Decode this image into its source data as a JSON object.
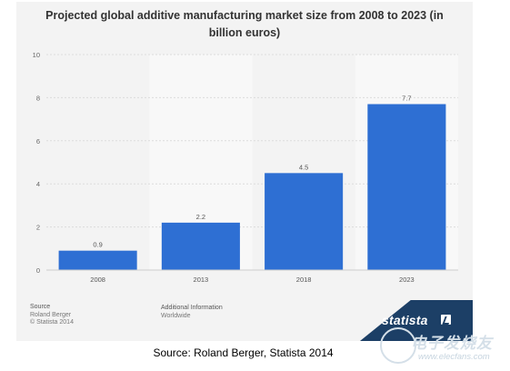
{
  "chart_data": {
    "type": "bar",
    "title": "Projected global additive manufacturing market size from 2008 to 2023 (in billion euros)",
    "categories": [
      "2008",
      "2013",
      "2018",
      "2023"
    ],
    "values": [
      0.9,
      2.2,
      4.5,
      7.7
    ],
    "value_labels": [
      "0.9",
      "2.2",
      "4.5",
      "7.7"
    ],
    "y_ticks": [
      "0",
      "2",
      "4",
      "6",
      "8",
      "10"
    ],
    "ylim": [
      0,
      10
    ],
    "xlabel": "",
    "ylabel": "",
    "grid": true,
    "bar_color": "#2e6fd3",
    "background_color": "#f3f3f3"
  },
  "notes": {
    "source_heading": "Source",
    "source_lines": [
      "Roland Berger",
      "© Statista 2014"
    ],
    "info_heading": "Additional Information",
    "info_lines": [
      "Worldwide"
    ]
  },
  "branding": {
    "statista_logo": "statista",
    "statista_logo_icon": "statista-mark-icon",
    "site_logo_name": "电子发烧友",
    "site_logo_url": "www.elecfans.com",
    "site_logo_icon": "elecfans-circle-icon",
    "watermark_color": "#1c3f66"
  },
  "caption": "Source: Roland Berger, Statista 2014"
}
